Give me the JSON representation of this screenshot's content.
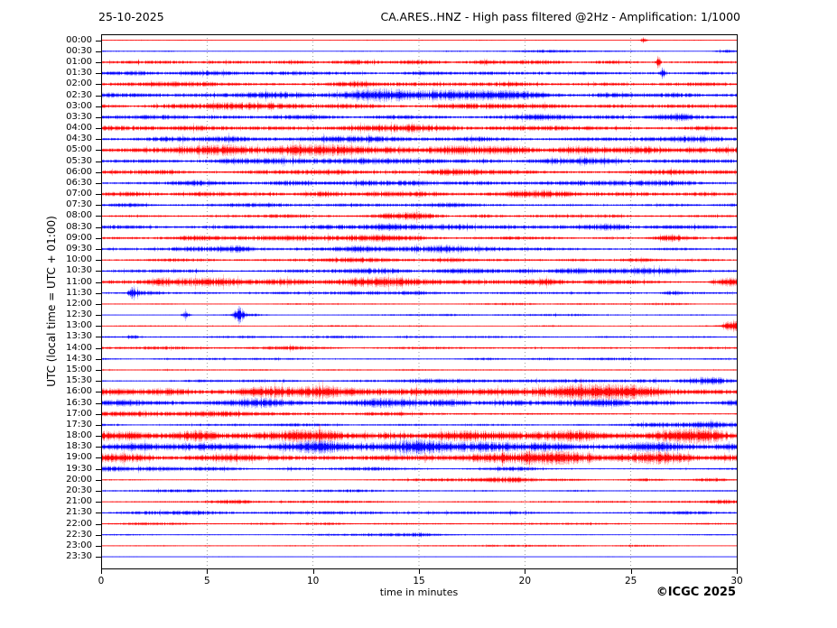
{
  "header": {
    "date": "25-10-2025",
    "title": "CA.ARES..HNZ - High pass filtered @2Hz - Amplification: 1/1000"
  },
  "axes": {
    "ylabel": "UTC (local time = UTC + 01:00)",
    "xlabel": "time in minutes"
  },
  "credit": "©ICGC 2025",
  "colors": {
    "trace_red": "#ff0000",
    "trace_blue": "#0000ff",
    "grid": "#777777",
    "frame": "#000000"
  },
  "chart_data": {
    "type": "line",
    "subtype": "seismogram_helicorder",
    "station": "CA.ARES..HNZ",
    "processing": "High pass filtered @2Hz",
    "amplification": "1/1000",
    "date": "25-10-2025",
    "xlabel": "time in minutes",
    "ylabel": "UTC (local time = UTC + 01:00)",
    "xlim": [
      0,
      30
    ],
    "x_ticks": [
      0,
      5,
      10,
      15,
      20,
      25,
      30
    ],
    "minutes_per_row": 30,
    "grid": "vertical dotted lines every 5 minutes",
    "amplitude_units": "relative (px half-height)",
    "rows": [
      {
        "time": "00:00",
        "color": "red",
        "level": 0.4,
        "bursts": [
          [
            25.6,
            0.1,
            2.5
          ]
        ]
      },
      {
        "time": "00:30",
        "color": "blue",
        "level": 0.5,
        "bursts": [
          [
            21,
            1.5,
            0.8
          ],
          [
            29.5,
            0.4,
            1.5
          ]
        ]
      },
      {
        "time": "01:00",
        "color": "red",
        "level": 1.6,
        "bursts": [
          [
            26.3,
            0.07,
            5.0
          ],
          [
            5,
            2,
            0.4
          ],
          [
            15,
            3,
            0.4
          ]
        ]
      },
      {
        "time": "01:30",
        "color": "blue",
        "level": 1.7,
        "bursts": [
          [
            26.5,
            0.07,
            5.0
          ],
          [
            2,
            1,
            0.6
          ],
          [
            6,
            1.5,
            0.8
          ]
        ]
      },
      {
        "time": "02:00",
        "color": "red",
        "level": 1.7,
        "bursts": [
          [
            4,
            1.5,
            0.7
          ],
          [
            12,
            2,
            0.6
          ],
          [
            22,
            2,
            0.5
          ]
        ]
      },
      {
        "time": "02:30",
        "color": "blue",
        "level": 2.0,
        "bursts": [
          [
            9,
            1.2,
            1.2
          ],
          [
            13,
            1.5,
            1.5
          ],
          [
            17,
            1.8,
            1.2
          ],
          [
            20,
            1,
            1.0
          ]
        ]
      },
      {
        "time": "03:00",
        "color": "red",
        "level": 1.8,
        "bursts": [
          [
            7,
            1.5,
            0.8
          ],
          [
            12,
            1,
            0.8
          ],
          [
            18,
            1.5,
            0.6
          ]
        ]
      },
      {
        "time": "03:30",
        "color": "blue",
        "level": 1.8,
        "bursts": [
          [
            1.5,
            0.8,
            1.0
          ],
          [
            21,
            1,
            0.7
          ],
          [
            27.5,
            1.5,
            1.0
          ]
        ]
      },
      {
        "time": "04:00",
        "color": "red",
        "level": 1.9,
        "bursts": [
          [
            3,
            1.5,
            0.8
          ],
          [
            8,
            1,
            0.7
          ],
          [
            14,
            1.2,
            0.9
          ],
          [
            19,
            1,
            0.7
          ],
          [
            24,
            1,
            0.6
          ]
        ]
      },
      {
        "time": "04:30",
        "color": "blue",
        "level": 1.9,
        "bursts": [
          [
            5,
            2,
            0.6
          ],
          [
            11,
            1.5,
            0.6
          ],
          [
            25,
            2,
            0.8
          ],
          [
            28,
            1,
            1.0
          ]
        ]
      },
      {
        "time": "05:00",
        "color": "red",
        "level": 2.4,
        "bursts": [
          [
            7,
            2,
            1.2
          ],
          [
            10,
            1.5,
            1.5
          ],
          [
            14,
            2,
            1.2
          ],
          [
            19,
            2,
            1.0
          ],
          [
            26,
            2,
            0.8
          ]
        ]
      },
      {
        "time": "05:30",
        "color": "blue",
        "level": 2.0,
        "bursts": [
          [
            2,
            1,
            0.8
          ],
          [
            7,
            1.5,
            0.7
          ],
          [
            12,
            1.5,
            0.7
          ],
          [
            23,
            2,
            0.6
          ]
        ]
      },
      {
        "time": "06:00",
        "color": "red",
        "level": 1.9,
        "bursts": [
          [
            10.5,
            0.8,
            1.5
          ],
          [
            16,
            1.5,
            0.6
          ],
          [
            27,
            1.5,
            0.8
          ]
        ]
      },
      {
        "time": "06:30",
        "color": "blue",
        "level": 1.8,
        "bursts": [
          [
            4,
            1.5,
            0.8
          ],
          [
            9,
            1,
            0.6
          ],
          [
            14,
            1.5,
            0.7
          ],
          [
            26,
            2,
            0.6
          ]
        ]
      },
      {
        "time": "07:00",
        "color": "red",
        "level": 1.9,
        "bursts": [
          [
            6,
            2,
            0.7
          ],
          [
            13,
            2,
            0.6
          ],
          [
            21,
            2,
            0.6
          ]
        ]
      },
      {
        "time": "07:30",
        "color": "blue",
        "level": 1.4,
        "bursts": [
          [
            1,
            0.8,
            0.8
          ],
          [
            8,
            1,
            0.5
          ],
          [
            17,
            2,
            0.4
          ]
        ]
      },
      {
        "time": "08:00",
        "color": "red",
        "level": 1.4,
        "bursts": [
          [
            8.5,
            1,
            1.0
          ],
          [
            14.5,
            1.2,
            1.0
          ],
          [
            23,
            1.5,
            0.5
          ]
        ]
      },
      {
        "time": "08:30",
        "color": "blue",
        "level": 1.7,
        "bursts": [
          [
            13,
            1.5,
            0.8
          ],
          [
            17,
            1.2,
            1.0
          ],
          [
            23,
            1.5,
            1.0
          ],
          [
            27,
            1,
            0.8
          ]
        ]
      },
      {
        "time": "09:00",
        "color": "red",
        "level": 1.5,
        "bursts": [
          [
            4.5,
            1,
            1.2
          ],
          [
            7,
            1,
            1.0
          ],
          [
            10,
            1.5,
            1.3
          ],
          [
            13,
            1,
            1.0
          ],
          [
            27,
            0.8,
            1.0
          ]
        ]
      },
      {
        "time": "09:30",
        "color": "blue",
        "level": 1.5,
        "bursts": [
          [
            4,
            1,
            1.2
          ],
          [
            6.5,
            0.8,
            1.5
          ],
          [
            13,
            1.5,
            1.0
          ],
          [
            16,
            1,
            1.2
          ],
          [
            20,
            1.5,
            0.5
          ]
        ]
      },
      {
        "time": "10:00",
        "color": "red",
        "level": 1.2,
        "bursts": [
          [
            4,
            1.5,
            0.5
          ],
          [
            12,
            2,
            0.7
          ],
          [
            17,
            1.5,
            0.6
          ],
          [
            25,
            1.5,
            0.4
          ]
        ]
      },
      {
        "time": "10:30",
        "color": "blue",
        "level": 1.4,
        "bursts": [
          [
            13,
            1.5,
            0.8
          ],
          [
            17,
            1,
            0.9
          ],
          [
            21,
            1.5,
            1.0
          ],
          [
            26,
            1.5,
            0.9
          ]
        ]
      },
      {
        "time": "11:00",
        "color": "red",
        "level": 1.6,
        "bursts": [
          [
            3,
            1.2,
            1.3
          ],
          [
            6,
            1.5,
            1.4
          ],
          [
            9,
            1,
            1.2
          ],
          [
            13,
            1.5,
            1.3
          ],
          [
            16,
            1.5,
            1.2
          ],
          [
            22,
            1.5,
            0.9
          ],
          [
            29.5,
            0.5,
            1.5
          ]
        ]
      },
      {
        "time": "11:30",
        "color": "blue",
        "level": 1.1,
        "bursts": [
          [
            1.5,
            0.15,
            3.5
          ],
          [
            2.2,
            0.5,
            1.2
          ],
          [
            14,
            2,
            0.5
          ],
          [
            27,
            0.3,
            1.8
          ]
        ]
      },
      {
        "time": "12:00",
        "color": "red",
        "level": 0.7,
        "bursts": [
          [
            20,
            2,
            0.3
          ],
          [
            26,
            1.5,
            0.4
          ]
        ]
      },
      {
        "time": "12:30",
        "color": "blue",
        "level": 0.6,
        "bursts": [
          [
            4,
            0.12,
            4.2
          ],
          [
            6.5,
            0.15,
            5.0
          ],
          [
            7,
            0.5,
            1.0
          ],
          [
            15,
            1.5,
            0.4
          ],
          [
            21,
            1.5,
            0.4
          ]
        ]
      },
      {
        "time": "13:00",
        "color": "red",
        "level": 0.6,
        "bursts": [
          [
            10,
            2,
            0.2
          ],
          [
            29.8,
            0.3,
            4.0
          ]
        ]
      },
      {
        "time": "13:30",
        "color": "blue",
        "level": 0.9,
        "bursts": [
          [
            1.5,
            0.2,
            1.5
          ],
          [
            8,
            2,
            0.3
          ],
          [
            14,
            2,
            0.3
          ]
        ]
      },
      {
        "time": "14:00",
        "color": "red",
        "level": 0.9,
        "bursts": [
          [
            2,
            1.5,
            0.5
          ],
          [
            9,
            1,
            0.6
          ],
          [
            14,
            1.5,
            0.4
          ],
          [
            21,
            1.5,
            0.4
          ],
          [
            28,
            1,
            0.5
          ]
        ]
      },
      {
        "time": "14:30",
        "color": "blue",
        "level": 0.8,
        "bursts": [
          [
            6,
            1.5,
            0.3
          ],
          [
            19,
            2,
            0.4
          ],
          [
            24,
            2,
            0.3
          ]
        ]
      },
      {
        "time": "15:00",
        "color": "red",
        "level": 0.6,
        "bursts": [
          [
            5,
            2,
            0.2
          ],
          [
            16,
            2,
            0.2
          ]
        ]
      },
      {
        "time": "15:30",
        "color": "blue",
        "level": 1.1,
        "bursts": [
          [
            16,
            1.5,
            0.8
          ],
          [
            22,
            2,
            0.9
          ],
          [
            27,
            1.5,
            1.0
          ],
          [
            29,
            0.8,
            1.2
          ]
        ]
      },
      {
        "time": "16:00",
        "color": "red",
        "level": 3.0,
        "bursts": [
          [
            8,
            1.5,
            1.0
          ],
          [
            12,
            2,
            0.8
          ],
          [
            17,
            2,
            1.0
          ],
          [
            22,
            2,
            1.8
          ],
          [
            25,
            1,
            1.0
          ]
        ]
      },
      {
        "time": "16:30",
        "color": "blue",
        "level": 2.4,
        "bursts": [
          [
            1.2,
            0.6,
            1.8
          ],
          [
            7,
            1.5,
            0.8
          ],
          [
            13,
            2,
            0.8
          ],
          [
            20,
            1.5,
            0.8
          ],
          [
            24,
            1.5,
            1.0
          ]
        ]
      },
      {
        "time": "17:00",
        "color": "red",
        "level": 1.0,
        "bursts": [
          [
            1,
            2,
            1.0
          ],
          [
            5,
            2,
            1.1
          ],
          [
            9,
            2,
            1.0
          ],
          [
            12.5,
            1.5,
            0.9
          ]
        ]
      },
      {
        "time": "17:30",
        "color": "blue",
        "level": 1.0,
        "bursts": [
          [
            9,
            2,
            0.3
          ],
          [
            27.5,
            1.5,
            1.5
          ],
          [
            29,
            1,
            1.5
          ]
        ]
      },
      {
        "time": "18:00",
        "color": "red",
        "level": 2.2,
        "bursts": [
          [
            1,
            1,
            1.5
          ],
          [
            5,
            1.5,
            1.5
          ],
          [
            9,
            1.5,
            1.8
          ],
          [
            13,
            1.5,
            1.5
          ],
          [
            18,
            2,
            1.2
          ],
          [
            22,
            1.5,
            1.5
          ],
          [
            26,
            1.5,
            1.5
          ],
          [
            29,
            1,
            1.8
          ]
        ]
      },
      {
        "time": "18:30",
        "color": "blue",
        "level": 3.0,
        "bursts": [
          [
            10,
            2,
            0.8
          ],
          [
            15,
            2,
            1.0
          ],
          [
            21,
            2,
            0.8
          ],
          [
            27,
            1.5,
            0.8
          ]
        ]
      },
      {
        "time": "19:00",
        "color": "red",
        "level": 2.8,
        "bursts": [
          [
            1,
            1,
            1.2
          ],
          [
            8,
            2,
            0.8
          ],
          [
            14,
            2,
            1.0
          ],
          [
            21,
            1.5,
            1.5
          ],
          [
            26,
            1,
            1.2
          ]
        ]
      },
      {
        "time": "19:30",
        "color": "blue",
        "level": 1.0,
        "bursts": [
          [
            1,
            1,
            1.5
          ],
          [
            2.5,
            1,
            1.2
          ],
          [
            5.5,
            1,
            1.0
          ],
          [
            12,
            1.5,
            1.0
          ],
          [
            19.5,
            1,
            0.8
          ]
        ]
      },
      {
        "time": "20:00",
        "color": "red",
        "level": 0.7,
        "bursts": [
          [
            17,
            1.5,
            0.8
          ],
          [
            19,
            1,
            1.0
          ],
          [
            21,
            1,
            0.8
          ],
          [
            26,
            1,
            0.5
          ],
          [
            29,
            0.8,
            1.0
          ]
        ]
      },
      {
        "time": "20:30",
        "color": "blue",
        "level": 0.8,
        "bursts": [
          [
            2,
            1.5,
            0.5
          ],
          [
            7,
            2,
            0.5
          ],
          [
            12,
            1.5,
            0.4
          ]
        ]
      },
      {
        "time": "21:00",
        "color": "red",
        "level": 0.8,
        "bursts": [
          [
            6.5,
            1,
            1.2
          ],
          [
            10,
            2,
            0.3
          ],
          [
            27,
            1.5,
            0.3
          ],
          [
            29.5,
            0.4,
            1.2
          ]
        ]
      },
      {
        "time": "21:30",
        "color": "blue",
        "level": 1.1,
        "bursts": [
          [
            4,
            1.5,
            0.6
          ],
          [
            8,
            1.5,
            0.6
          ],
          [
            12,
            1,
            0.8
          ],
          [
            19,
            2,
            0.3
          ],
          [
            27,
            1.5,
            0.4
          ]
        ]
      },
      {
        "time": "22:00",
        "color": "red",
        "level": 0.8,
        "bursts": [
          [
            3,
            1.5,
            0.4
          ],
          [
            10,
            2,
            0.3
          ],
          [
            23,
            2,
            0.3
          ]
        ]
      },
      {
        "time": "22:30",
        "color": "blue",
        "level": 0.6,
        "bursts": [
          [
            12.5,
            1.5,
            0.8
          ],
          [
            15,
            1,
            0.6
          ]
        ]
      },
      {
        "time": "23:00",
        "color": "red",
        "level": 0.5,
        "bursts": [
          [
            19,
            1.5,
            0.5
          ],
          [
            22,
            1.5,
            0.5
          ],
          [
            25,
            1,
            0.4
          ]
        ]
      },
      {
        "time": "23:30",
        "color": "blue",
        "level": 0.35,
        "bursts": []
      }
    ]
  }
}
